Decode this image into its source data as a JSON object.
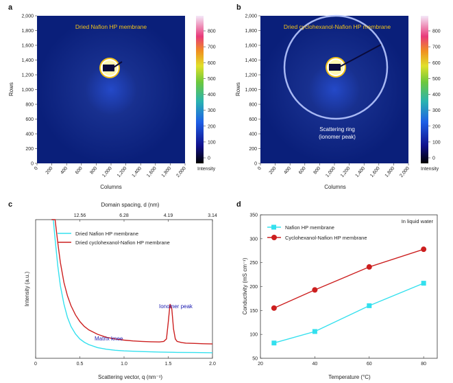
{
  "panels": {
    "a": {
      "letter": "a",
      "annotation": "Dried Nafion HP membrane",
      "xlabel": "Columns",
      "ylabel": "Rows",
      "xticks": [
        "0",
        "200",
        "400",
        "600",
        "800",
        "1,000",
        "1,200",
        "1,400",
        "1,600",
        "1,800",
        "2,000"
      ],
      "yticks": [
        "0",
        "200",
        "400",
        "600",
        "800",
        "1,000",
        "1,200",
        "1,400",
        "1,600",
        "1,800",
        "2,000"
      ],
      "colorbar_label": "Intensity",
      "colorbar_ticks": [
        "0",
        "100",
        "200",
        "300",
        "400",
        "500",
        "600",
        "700",
        "800"
      ]
    },
    "b": {
      "letter": "b",
      "annotation": "Dried cyclohexanol-Nafion HP membrane",
      "ring_label_1": "Scattering ring",
      "ring_label_2": "(ionomer peak)",
      "xlabel": "Columns",
      "ylabel": "Rows",
      "xticks": [
        "0",
        "200",
        "400",
        "600",
        "800",
        "1,000",
        "1,200",
        "1,400",
        "1,600",
        "1,800",
        "2,000"
      ],
      "yticks": [
        "0",
        "200",
        "400",
        "600",
        "800",
        "1,000",
        "1,200",
        "1,400",
        "1,600",
        "1,800",
        "2,000"
      ],
      "colorbar_label": "Intensity",
      "colorbar_ticks": [
        "0",
        "100",
        "200",
        "300",
        "400",
        "500",
        "600",
        "700",
        "800"
      ]
    },
    "c": {
      "letter": "c"
    },
    "d": {
      "letter": "d"
    }
  },
  "colors": {
    "cyan": "#33e0ee",
    "red": "#cc1f1f",
    "detector_bg": "#0a1f7a",
    "annotation_yellow": "#f2c21a",
    "blue_text": "#1a1ab0"
  },
  "chart_data": [
    {
      "type": "line",
      "panel": "c",
      "xlabel": "Scattering vector, q (nm⁻¹)",
      "ylabel": "Intensity (a.u.)",
      "top_xlabel": "Domain spacing, d (nm)",
      "xlim": [
        0.0,
        2.0
      ],
      "xticks": [
        "0",
        "0.5",
        "1.0",
        "1.5",
        "2.0"
      ],
      "top_ticks": [
        {
          "label": "12.56",
          "q": 0.5
        },
        {
          "label": "6.28",
          "q": 1.0
        },
        {
          "label": "4.19",
          "q": 1.5
        },
        {
          "label": "3.14",
          "q": 2.0
        }
      ],
      "annotations": {
        "ionomer_peak": "Ionomer peak",
        "matrix_knee": "Matrix knee"
      },
      "series": [
        {
          "name": "Dried Nafion HP membrane",
          "x": [
            0.18,
            0.2,
            0.22,
            0.25,
            0.28,
            0.32,
            0.36,
            0.4,
            0.45,
            0.5,
            0.55,
            0.6,
            0.7,
            0.8,
            0.9,
            1.0,
            1.2,
            1.4,
            1.6,
            1.8,
            2.0
          ],
          "y": [
            1.0,
            0.86,
            0.7,
            0.54,
            0.42,
            0.31,
            0.23,
            0.175,
            0.13,
            0.1,
            0.08,
            0.066,
            0.048,
            0.038,
            0.032,
            0.028,
            0.024,
            0.021,
            0.019,
            0.018,
            0.017
          ]
        },
        {
          "name": "Dried cyclohexanol-Nafion HP membrane",
          "x": [
            0.18,
            0.2,
            0.22,
            0.25,
            0.28,
            0.32,
            0.36,
            0.4,
            0.45,
            0.5,
            0.55,
            0.6,
            0.7,
            0.8,
            0.9,
            1.0,
            1.1,
            1.2,
            1.3,
            1.4,
            1.45,
            1.48,
            1.5,
            1.52,
            1.54,
            1.56,
            1.58,
            1.6,
            1.65,
            1.7,
            1.8,
            1.9,
            2.0
          ],
          "y": [
            1.0,
            0.93,
            0.82,
            0.68,
            0.56,
            0.44,
            0.36,
            0.3,
            0.245,
            0.205,
            0.175,
            0.155,
            0.128,
            0.11,
            0.1,
            0.093,
            0.088,
            0.085,
            0.083,
            0.082,
            0.085,
            0.1,
            0.2,
            0.31,
            0.28,
            0.16,
            0.1,
            0.085,
            0.078,
            0.075,
            0.073,
            0.071,
            0.07
          ]
        }
      ]
    },
    {
      "type": "line",
      "panel": "d",
      "xlabel": "Temperature (°C)",
      "ylabel": "Conductivity (mS cm⁻¹)",
      "xlim": [
        20,
        85
      ],
      "ylim": [
        50,
        350
      ],
      "xticks": [
        20,
        40,
        60,
        80
      ],
      "yticks": [
        50,
        100,
        150,
        200,
        250,
        300,
        350
      ],
      "note": "In liquid water",
      "series": [
        {
          "name": "Nafion HP membrane",
          "x": [
            25,
            40,
            60,
            80
          ],
          "y": [
            82,
            106,
            160,
            207
          ],
          "marker": "square"
        },
        {
          "name": "Cyclohexanol-Nafion HP membrane",
          "x": [
            25,
            40,
            60,
            80
          ],
          "y": [
            155,
            193,
            241,
            278
          ],
          "marker": "circle"
        }
      ]
    }
  ]
}
